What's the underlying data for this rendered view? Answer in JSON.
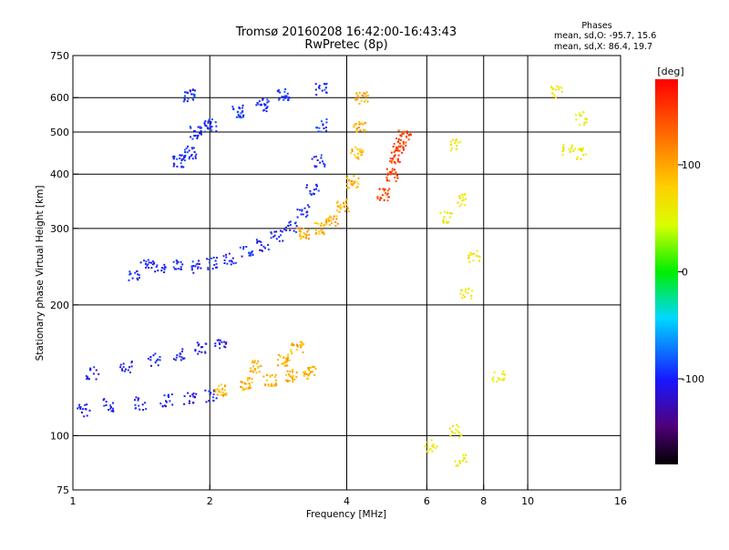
{
  "chart_data": {
    "type": "scatter",
    "title": "Tromsø 20160208 16:42:00-16:43:43",
    "subtitle": "RwPretec (8p)",
    "xlabel": "Frequency [MHz]",
    "ylabel": "Stationary phase Virtual Height [km]",
    "x_scale": "log",
    "y_scale": "log",
    "xlim": [
      1,
      16
    ],
    "ylim": [
      75,
      750
    ],
    "x_ticks": [
      1,
      2,
      4,
      6,
      8,
      10,
      16
    ],
    "x_gridlines": [
      2,
      4,
      6,
      8,
      10
    ],
    "y_ticks": [
      75,
      100,
      200,
      300,
      400,
      500,
      600,
      750
    ],
    "y_gridlines": [
      100,
      200,
      300,
      400,
      500,
      600
    ],
    "grid": true,
    "stats": {
      "heading": "Phases",
      "line_o": "mean, sd,O: -95.7, 15.6",
      "line_x": "mean, sd,X:  86.4, 19.7"
    },
    "colorbar": {
      "label": "[deg]",
      "range": [
        -180,
        180
      ],
      "ticks": [
        -100,
        0,
        100
      ],
      "placement": "right"
    },
    "point_groups": [
      {
        "region": "F-layer O-mode trace",
        "points": [
          [
            1.35,
            235
          ],
          [
            1.45,
            248
          ],
          [
            1.55,
            247
          ],
          [
            1.7,
            246
          ],
          [
            1.85,
            246
          ],
          [
            2.0,
            250
          ],
          [
            2.2,
            256
          ],
          [
            2.4,
            265
          ],
          [
            2.6,
            275
          ],
          [
            2.8,
            288
          ],
          [
            3.0,
            305
          ],
          [
            3.2,
            330
          ],
          [
            3.35,
            370
          ],
          [
            3.45,
            430
          ],
          [
            3.5,
            520
          ],
          [
            3.5,
            630
          ]
        ],
        "phase_deg": -100
      },
      {
        "region": "F-layer X-mode trace",
        "points": [
          [
            3.2,
            292
          ],
          [
            3.5,
            300
          ],
          [
            3.7,
            315
          ],
          [
            3.9,
            340
          ],
          [
            4.1,
            385
          ],
          [
            4.2,
            450
          ],
          [
            4.25,
            520
          ],
          [
            4.3,
            600
          ]
        ],
        "phase_deg": 95
      },
      {
        "region": "F-layer X-mode upper trace",
        "points": [
          [
            4.8,
            360
          ],
          [
            5.0,
            400
          ],
          [
            5.1,
            440
          ],
          [
            5.2,
            470
          ],
          [
            5.35,
            490
          ]
        ],
        "phase_deg": 150
      },
      {
        "region": "spread F upper echoes",
        "points": [
          [
            1.7,
            430
          ],
          [
            1.8,
            450
          ],
          [
            1.85,
            500
          ],
          [
            2.0,
            520
          ],
          [
            2.3,
            560
          ],
          [
            2.6,
            580
          ],
          [
            2.9,
            610
          ],
          [
            1.8,
            610
          ]
        ],
        "phase_deg": -95
      },
      {
        "region": "E/Es layer O-mode echoes",
        "points": [
          [
            1.05,
            115
          ],
          [
            1.2,
            118
          ],
          [
            1.4,
            119
          ],
          [
            1.6,
            121
          ],
          [
            1.8,
            122
          ],
          [
            2.0,
            124
          ],
          [
            1.1,
            140
          ],
          [
            1.3,
            145
          ],
          [
            1.5,
            150
          ],
          [
            1.7,
            155
          ],
          [
            1.9,
            160
          ],
          [
            2.1,
            165
          ]
        ],
        "phase_deg": -105
      },
      {
        "region": "E/Es layer X-mode echoes",
        "points": [
          [
            2.1,
            128
          ],
          [
            2.4,
            132
          ],
          [
            2.7,
            135
          ],
          [
            3.0,
            138
          ],
          [
            3.3,
            140
          ],
          [
            2.5,
            145
          ],
          [
            2.9,
            150
          ],
          [
            3.1,
            160
          ]
        ],
        "phase_deg": 95
      },
      {
        "region": "sporadic high-frequency echoes",
        "points": [
          [
            6.6,
            320
          ],
          [
            6.9,
            470
          ],
          [
            7.2,
            350
          ],
          [
            7.3,
            215
          ],
          [
            7.6,
            260
          ],
          [
            8.6,
            137
          ],
          [
            11.5,
            620
          ],
          [
            12.2,
            460
          ],
          [
            13.0,
            540
          ],
          [
            13.0,
            450
          ],
          [
            7.1,
            88
          ],
          [
            6.9,
            103
          ],
          [
            6.1,
            95
          ]
        ],
        "phase_deg": 60
      }
    ]
  }
}
